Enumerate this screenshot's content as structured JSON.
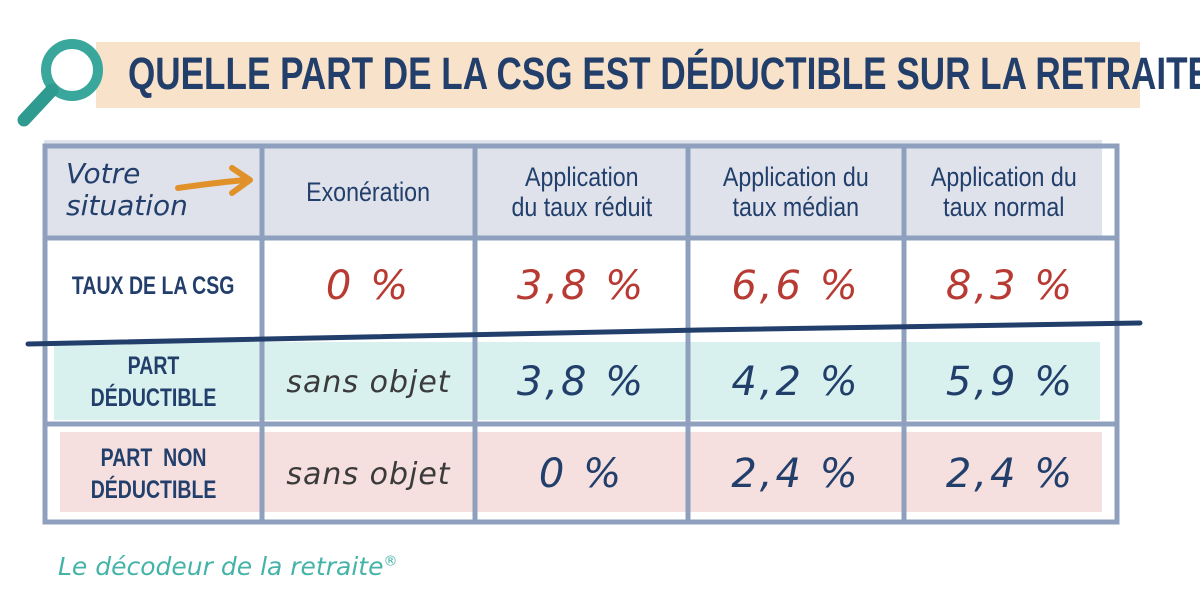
{
  "title": "QUELLE PART DE LA CSG EST DÉDUCTIBLE SUR LA RETRAITE ?",
  "header": {
    "situation_line1": "Votre",
    "situation_line2": "situation",
    "columns": [
      {
        "line1": "Exonération",
        "line2": ""
      },
      {
        "line1": "Application",
        "line2": "du taux réduit"
      },
      {
        "line1": "Application du",
        "line2": "taux médian"
      },
      {
        "line1": "Application du",
        "line2": "taux normal"
      }
    ]
  },
  "rows": [
    {
      "label_line1": "TAUX DE LA CSG",
      "label_line2": "",
      "values": [
        "0 %",
        "3,8 %",
        "6,6 %",
        "8,3 %"
      ]
    },
    {
      "label_line1": "PART DÉDUCTIBLE",
      "label_line2": "",
      "values": [
        "sans objet",
        "3,8 %",
        "4,2 %",
        "5,9 %"
      ]
    },
    {
      "label_line1": "PART  NON",
      "label_line2": "DÉDUCTIBLE",
      "values": [
        "sans objet",
        "0 %",
        "2,4 %",
        "2,4 %"
      ]
    }
  ],
  "footer": {
    "text": "Le décodeur de la retraite",
    "mark": "®"
  },
  "colors": {
    "navy": "#223f6c",
    "red": "#b73a33",
    "teal": "#45b3a8",
    "title_band": "#f8e2c9",
    "header_fill": "#dfe2ea",
    "deductible_fill": "#d9f1ee",
    "non_deductible_fill": "#f5dfdf",
    "grid": "#8ea0bd",
    "arrow": "#e0912a"
  },
  "icons": {
    "title_icon": "magnifier-icon",
    "situation_icon": "arrow-right-icon"
  }
}
